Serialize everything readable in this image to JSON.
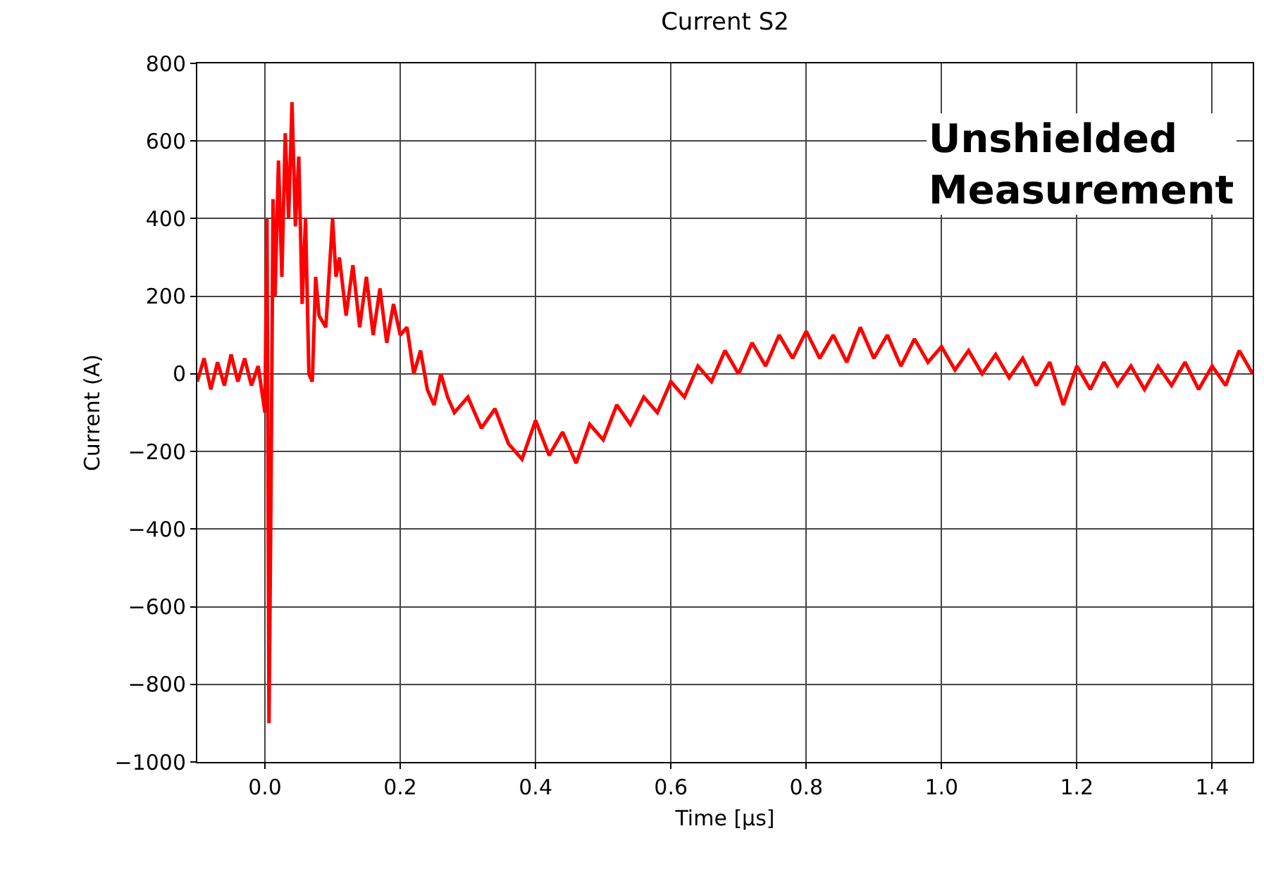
{
  "chart_data": {
    "type": "line",
    "title": "Current S2",
    "xlabel": "Time [µs]",
    "ylabel": "Current (A)",
    "annotations": [
      "Unshielded\nMeasurement"
    ],
    "x": [
      -0.1,
      -0.09,
      -0.08,
      -0.07,
      -0.06,
      -0.05,
      -0.04,
      -0.03,
      -0.02,
      -0.01,
      0.0,
      0.003,
      0.006,
      0.009,
      0.012,
      0.015,
      0.02,
      0.025,
      0.03,
      0.035,
      0.04,
      0.045,
      0.05,
      0.055,
      0.06,
      0.065,
      0.07,
      0.075,
      0.08,
      0.09,
      0.1,
      0.105,
      0.11,
      0.12,
      0.13,
      0.14,
      0.15,
      0.16,
      0.17,
      0.18,
      0.19,
      0.2,
      0.21,
      0.22,
      0.23,
      0.24,
      0.25,
      0.26,
      0.27,
      0.28,
      0.3,
      0.32,
      0.34,
      0.36,
      0.38,
      0.4,
      0.42,
      0.44,
      0.46,
      0.48,
      0.5,
      0.52,
      0.54,
      0.56,
      0.58,
      0.6,
      0.62,
      0.64,
      0.66,
      0.68,
      0.7,
      0.72,
      0.74,
      0.76,
      0.78,
      0.8,
      0.82,
      0.84,
      0.86,
      0.88,
      0.9,
      0.92,
      0.94,
      0.96,
      0.98,
      1.0,
      1.02,
      1.04,
      1.06,
      1.08,
      1.1,
      1.12,
      1.14,
      1.16,
      1.18,
      1.2,
      1.22,
      1.24,
      1.26,
      1.28,
      1.3,
      1.32,
      1.34,
      1.36,
      1.38,
      1.4,
      1.42,
      1.44,
      1.46
    ],
    "series": [
      {
        "color": "#ff0000",
        "values": [
          -20,
          40,
          -40,
          30,
          -30,
          50,
          -20,
          40,
          -30,
          20,
          -100,
          400,
          -900,
          -300,
          450,
          200,
          550,
          250,
          620,
          400,
          700,
          380,
          560,
          180,
          400,
          0,
          -20,
          250,
          150,
          120,
          400,
          250,
          300,
          150,
          280,
          120,
          250,
          100,
          220,
          80,
          180,
          100,
          120,
          0,
          60,
          -40,
          -80,
          0,
          -60,
          -100,
          -60,
          -140,
          -90,
          -180,
          -220,
          -120,
          -210,
          -150,
          -230,
          -130,
          -170,
          -80,
          -130,
          -60,
          -100,
          -20,
          -60,
          20,
          -20,
          60,
          0,
          80,
          20,
          100,
          40,
          110,
          40,
          100,
          30,
          120,
          40,
          100,
          20,
          90,
          30,
          70,
          10,
          60,
          0,
          50,
          -10,
          40,
          -30,
          30,
          -80,
          20,
          -40,
          30,
          -30,
          20,
          -40,
          20,
          -30,
          30,
          -40,
          20,
          -30,
          60,
          0
        ]
      }
    ],
    "xlim": [
      -0.1,
      1.46
    ],
    "xticks": [
      {
        "value": 0,
        "label": "0.0"
      },
      0.2,
      0.4,
      0.6,
      0.8,
      {
        "value": 1,
        "label": "1.0"
      },
      1.2,
      1.4
    ],
    "ylim": [
      -1000,
      800
    ],
    "yticks": [
      -1000,
      -800,
      -600,
      -400,
      -200,
      0,
      200,
      400,
      600,
      800
    ],
    "grid": true,
    "line_style": "solid",
    "marker": "none"
  }
}
